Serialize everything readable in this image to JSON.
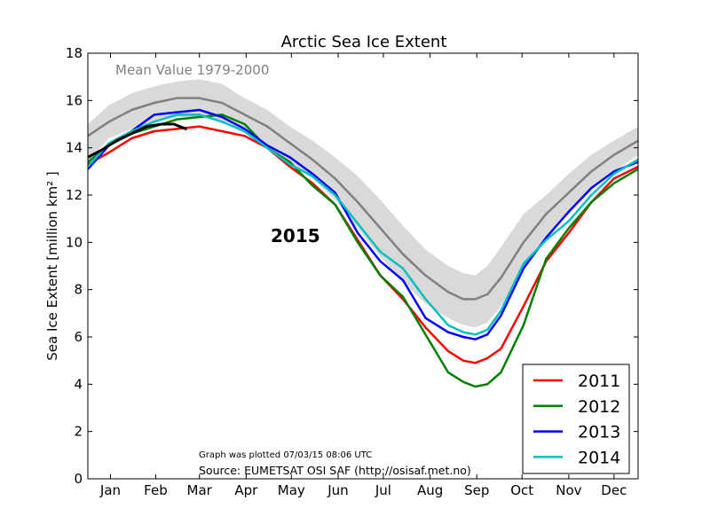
{
  "chart_data": {
    "type": "line",
    "title": "Arctic Sea Ice Extent",
    "xlabel": "",
    "ylabel": "Sea Ice Extent [million km² ]",
    "ylim": [
      0,
      18
    ],
    "y_ticks": [
      0,
      2,
      4,
      6,
      8,
      10,
      12,
      14,
      16,
      18
    ],
    "x_range_day_of_year": [
      1,
      366
    ],
    "months": [
      {
        "label": "Jan",
        "day": 16
      },
      {
        "label": "Feb",
        "day": 46
      },
      {
        "label": "Mar",
        "day": 75
      },
      {
        "label": "Apr",
        "day": 106
      },
      {
        "label": "May",
        "day": 136
      },
      {
        "label": "Jun",
        "day": 167
      },
      {
        "label": "Jul",
        "day": 197
      },
      {
        "label": "Aug",
        "day": 228
      },
      {
        "label": "Sep",
        "day": 259
      },
      {
        "label": "Oct",
        "day": 289
      },
      {
        "label": "Nov",
        "day": 320
      },
      {
        "label": "Dec",
        "day": 350
      }
    ],
    "grid": false,
    "legend_placement": "bottom-right",
    "mean_label": "Mean Value 1979-2000",
    "current_year_label": "2015",
    "plotted_note": "Graph was plotted 07/03/15 08:06 UTC",
    "source_note": "Source: EUMETSAT OSI SAF (http://osisaf.met.no)",
    "mean_band": {
      "color": "#d9d9d9",
      "x": [
        1,
        15,
        30,
        45,
        60,
        75,
        90,
        105,
        120,
        135,
        150,
        165,
        180,
        195,
        210,
        225,
        240,
        250,
        258,
        266,
        275,
        290,
        305,
        320,
        335,
        350,
        366
      ],
      "upper": [
        15.0,
        15.8,
        16.3,
        16.6,
        16.8,
        16.9,
        16.7,
        16.1,
        15.6,
        14.9,
        14.3,
        13.6,
        12.8,
        11.8,
        10.7,
        9.7,
        9.0,
        8.7,
        8.6,
        9.0,
        9.8,
        11.2,
        12.0,
        12.9,
        13.7,
        14.3,
        14.9
      ],
      "lower": [
        13.4,
        14.4,
        14.8,
        15.1,
        15.3,
        15.3,
        15.1,
        14.6,
        14.0,
        13.4,
        12.7,
        11.8,
        10.6,
        9.4,
        8.3,
        7.4,
        6.8,
        6.5,
        6.4,
        6.6,
        7.3,
        8.8,
        10.3,
        11.2,
        12.2,
        13.0,
        13.7
      ]
    },
    "mean_series": {
      "name": "Mean Value 1979-2000",
      "color": "#808080",
      "x": [
        1,
        15,
        30,
        45,
        60,
        75,
        90,
        105,
        120,
        135,
        150,
        165,
        180,
        195,
        210,
        225,
        240,
        250,
        258,
        266,
        275,
        290,
        305,
        320,
        335,
        350,
        366
      ],
      "y": [
        14.5,
        15.1,
        15.6,
        15.9,
        16.1,
        16.1,
        15.9,
        15.4,
        14.9,
        14.2,
        13.5,
        12.7,
        11.7,
        10.6,
        9.5,
        8.6,
        7.9,
        7.6,
        7.6,
        7.8,
        8.5,
        10.0,
        11.2,
        12.1,
        13.0,
        13.7,
        14.3
      ]
    },
    "series": [
      {
        "name": "2011",
        "color": "#ff0000",
        "x": [
          1,
          15,
          30,
          45,
          60,
          75,
          90,
          105,
          120,
          135,
          150,
          165,
          180,
          195,
          210,
          225,
          240,
          250,
          258,
          266,
          275,
          290,
          305,
          320,
          335,
          350,
          366
        ],
        "y": [
          13.3,
          13.8,
          14.4,
          14.7,
          14.8,
          14.9,
          14.7,
          14.5,
          14.0,
          13.2,
          12.5,
          11.6,
          10.1,
          8.6,
          7.6,
          6.4,
          5.4,
          5.0,
          4.9,
          5.1,
          5.5,
          7.3,
          9.2,
          10.4,
          11.7,
          12.7,
          13.2
        ]
      },
      {
        "name": "2012",
        "color": "#008000",
        "x": [
          1,
          15,
          30,
          45,
          60,
          75,
          90,
          105,
          120,
          135,
          150,
          165,
          180,
          195,
          210,
          225,
          240,
          250,
          258,
          266,
          275,
          290,
          305,
          320,
          335,
          350,
          366
        ],
        "y": [
          13.4,
          14.1,
          14.6,
          14.9,
          15.2,
          15.3,
          15.4,
          15.0,
          14.0,
          13.4,
          12.4,
          11.6,
          10.0,
          8.6,
          7.7,
          6.1,
          4.5,
          4.1,
          3.9,
          4.0,
          4.5,
          6.5,
          9.3,
          10.6,
          11.7,
          12.5,
          13.1
        ]
      },
      {
        "name": "2013",
        "color": "#0000ff",
        "x": [
          1,
          15,
          30,
          45,
          60,
          75,
          90,
          105,
          120,
          135,
          150,
          165,
          180,
          195,
          210,
          225,
          240,
          250,
          258,
          266,
          275,
          290,
          305,
          320,
          335,
          350,
          366
        ],
        "y": [
          13.1,
          14.1,
          14.7,
          15.4,
          15.5,
          15.6,
          15.3,
          14.8,
          14.1,
          13.6,
          12.9,
          12.1,
          10.4,
          9.2,
          8.4,
          6.8,
          6.2,
          6.0,
          5.9,
          6.1,
          6.9,
          8.9,
          10.2,
          11.3,
          12.3,
          13.0,
          13.4
        ]
      },
      {
        "name": "2014",
        "color": "#00bfbf",
        "x": [
          1,
          15,
          30,
          45,
          60,
          75,
          90,
          105,
          120,
          135,
          150,
          165,
          180,
          195,
          210,
          225,
          240,
          250,
          258,
          266,
          275,
          290,
          305,
          320,
          335,
          350,
          366
        ],
        "y": [
          13.2,
          14.2,
          14.7,
          15.1,
          15.4,
          15.4,
          15.1,
          14.7,
          14.0,
          13.3,
          12.8,
          12.0,
          10.8,
          9.6,
          8.9,
          7.6,
          6.5,
          6.2,
          6.1,
          6.3,
          7.1,
          9.1,
          10.1,
          10.9,
          12.0,
          12.9,
          13.5
        ]
      },
      {
        "name": "2015",
        "color": "#000000",
        "x": [
          1,
          10,
          20,
          30,
          40,
          50,
          58,
          66
        ],
        "y": [
          13.6,
          13.9,
          14.3,
          14.6,
          14.9,
          15.0,
          15.0,
          14.8
        ]
      }
    ]
  }
}
